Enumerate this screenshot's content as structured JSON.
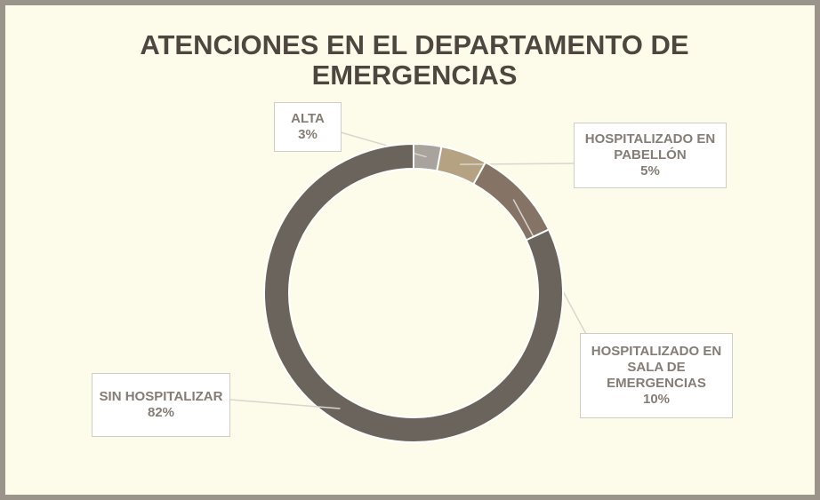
{
  "chart_data": {
    "type": "donut",
    "title": "ATENCIONES EN EL DEPARTAMENTO DE EMERGENCIAS",
    "categories": [
      "ALTA",
      "HOSPITALIZADO EN PABELLÓN",
      "HOSPITALIZADO EN SALA DE EMERGENCIAS",
      "SIN HOSPITALIZAR"
    ],
    "values": [
      3,
      5,
      10,
      82
    ],
    "value_labels": [
      "3%",
      "5%",
      "10%",
      "82%"
    ],
    "colors": [
      "#a8a39c",
      "#b5a283",
      "#857365",
      "#6b645c"
    ]
  }
}
